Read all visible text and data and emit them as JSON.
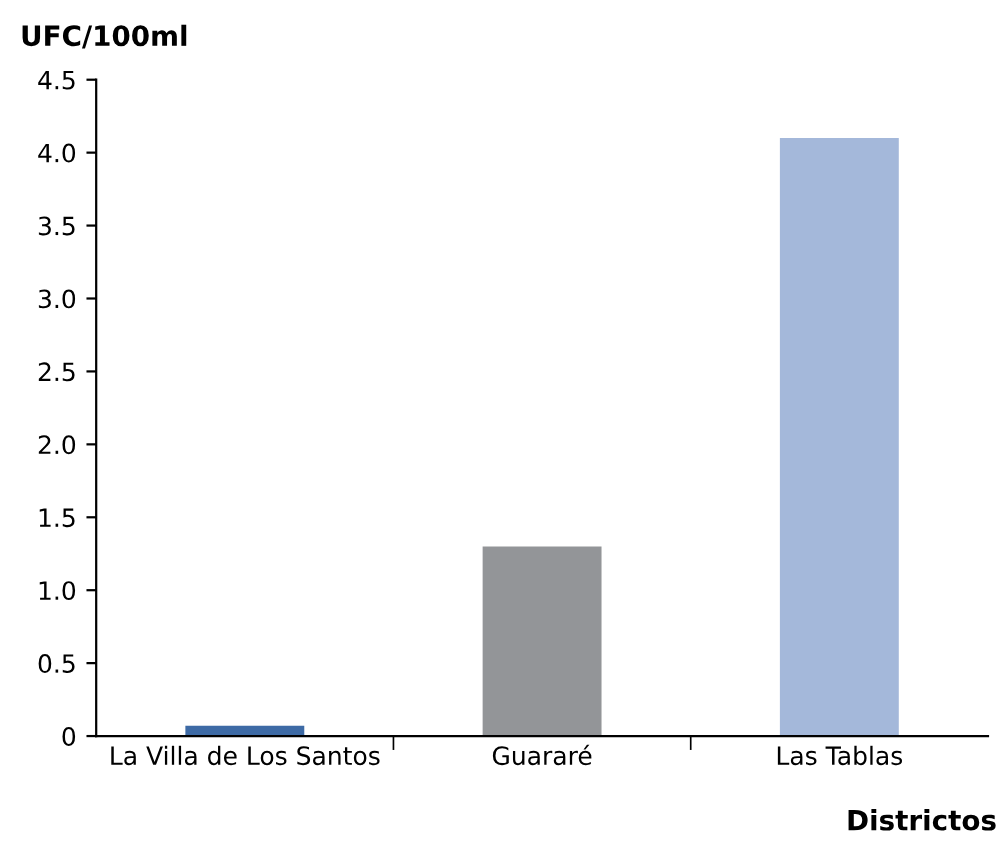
{
  "chart_data": {
    "type": "bar",
    "ylabel": "UFC/100ml",
    "xlabel": "Districtos",
    "categories": [
      "La Villa de Los Santos",
      "Guararé",
      "Las Tablas"
    ],
    "values": [
      0.07,
      1.3,
      4.1
    ],
    "colors": [
      "#3d6aa5",
      "#939598",
      "#a4b8da"
    ],
    "ylim": [
      0,
      4.5
    ],
    "yticks": [
      0,
      0.5,
      {
        "value": 1,
        "label": "1.0"
      },
      1.5,
      {
        "value": 2,
        "label": "2.0"
      },
      2.5,
      {
        "value": 3,
        "label": "3.0"
      },
      3.5,
      {
        "value": 4,
        "label": "4.0"
      },
      4.5
    ],
    "grid": false
  }
}
